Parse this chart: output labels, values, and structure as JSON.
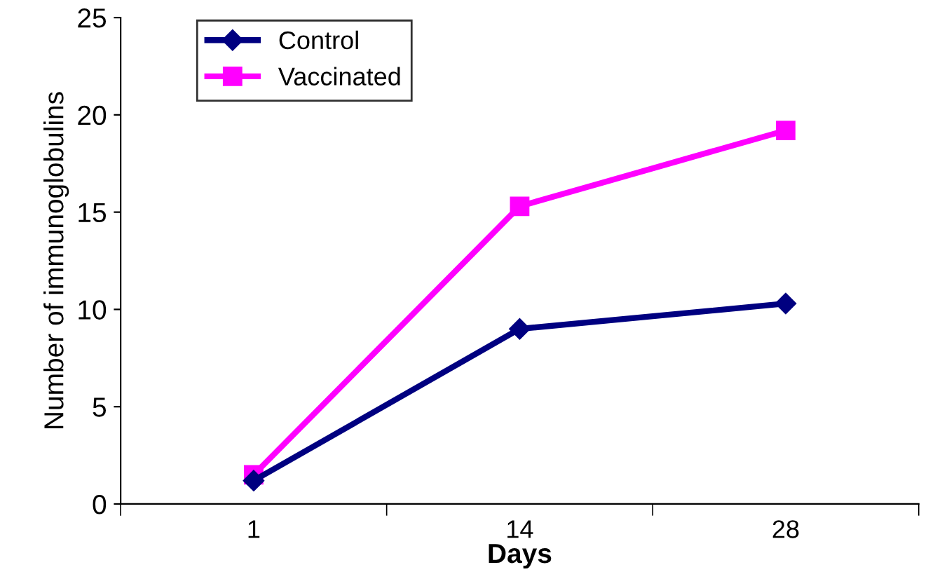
{
  "chart_data": {
    "type": "line",
    "xlabel": "Days",
    "ylabel": "Number of immunoglobulins",
    "categories": [
      "1",
      "14",
      "28"
    ],
    "series": [
      {
        "name": "Control",
        "color": "#000080",
        "marker": "diamond",
        "values": [
          1.2,
          9.0,
          10.3
        ]
      },
      {
        "name": "Vaccinated",
        "color": "#ff00ff",
        "marker": "square",
        "values": [
          1.5,
          15.3,
          19.2
        ]
      }
    ],
    "ylim": [
      0,
      25
    ],
    "yticks": [
      0,
      5,
      10,
      15,
      20,
      25
    ],
    "grid": false,
    "legend": "top left",
    "line_style": "solid"
  }
}
